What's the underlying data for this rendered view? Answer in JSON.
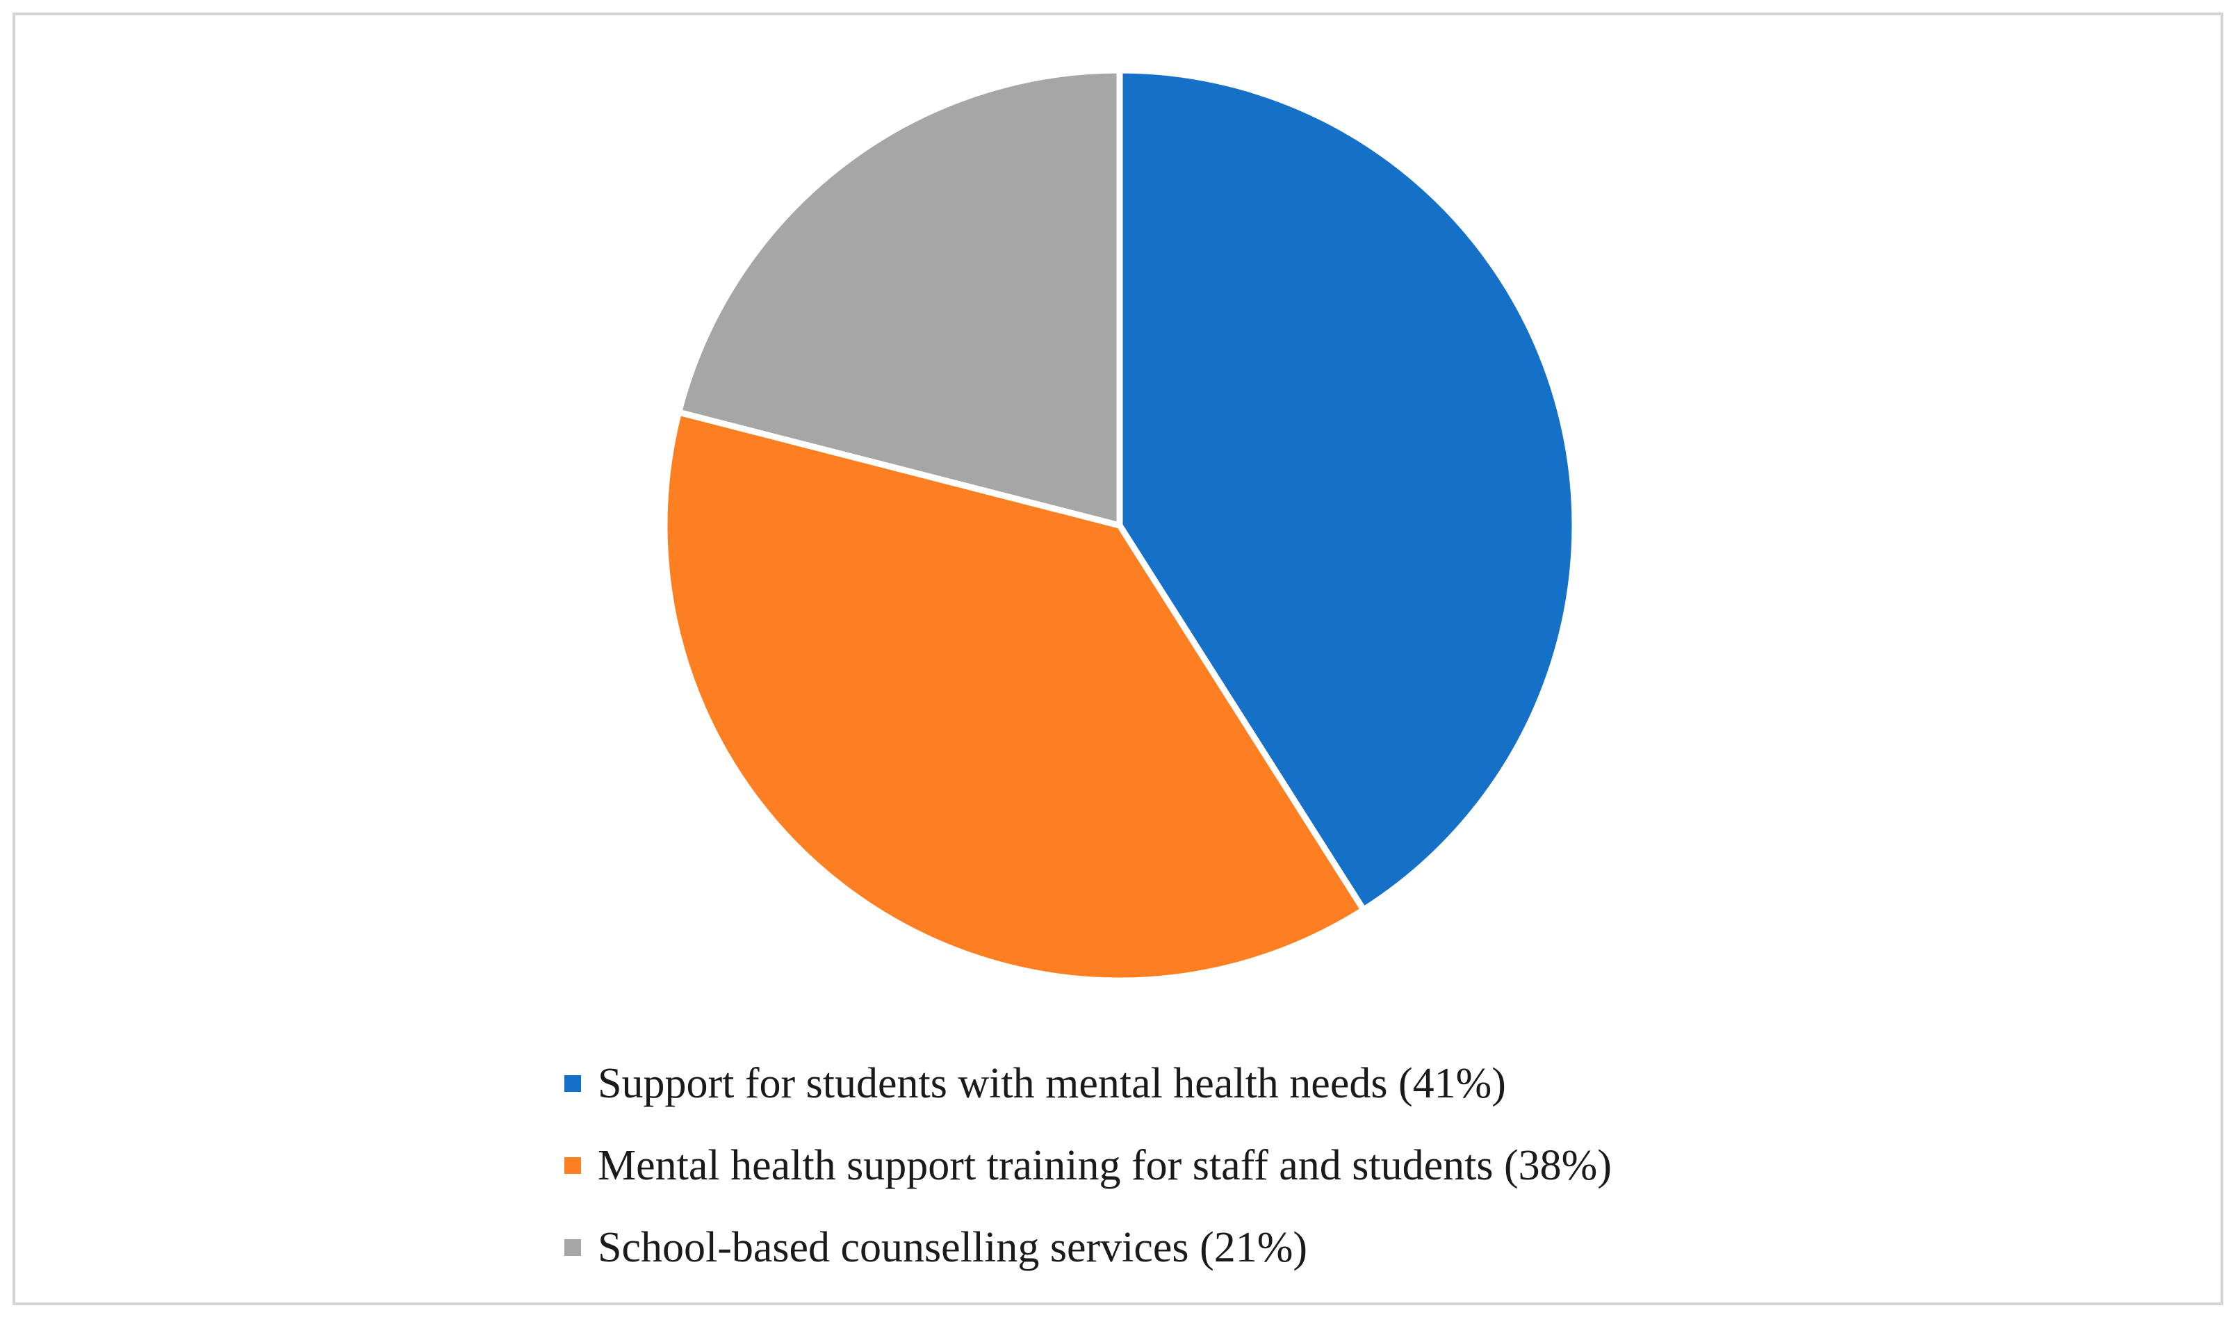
{
  "chart_data": {
    "type": "pie",
    "title": "",
    "slices": [
      {
        "label": "Support for students with mental health needs (41%)",
        "value": 41,
        "color": "#1570c8"
      },
      {
        "label": "Mental health support training for staff and students (38%)",
        "value": 38,
        "color": "#fd7f22"
      },
      {
        "label": "School-based counselling services (21%)",
        "value": 21,
        "color": "#a6a6a6"
      }
    ],
    "legend_position": "bottom",
    "start_angle": "12 o'clock, clockwise"
  }
}
